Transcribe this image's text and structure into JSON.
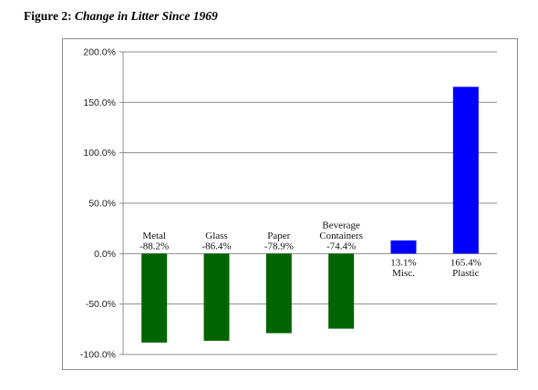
{
  "figure": {
    "title_prefix": "Figure 2:",
    "title_main": "Change in Litter Since 1969"
  },
  "chart_data": {
    "type": "bar",
    "categories": [
      "Metal",
      "Glass",
      "Paper",
      "Beverage Containers",
      "Misc.",
      "Plastic"
    ],
    "values": [
      -88.2,
      -86.4,
      -78.9,
      -74.4,
      13.1,
      165.4
    ],
    "value_labels": [
      "-88.2%",
      "-86.4%",
      "-78.9%",
      "-74.4%",
      "13.1%",
      "165.4%"
    ],
    "category_label_lines": [
      [
        "Metal"
      ],
      [
        "Glass"
      ],
      [
        "Paper"
      ],
      [
        "Beverage",
        "Containers"
      ],
      [
        "Misc."
      ],
      [
        "Plastic"
      ]
    ],
    "bar_colors": [
      "#006400",
      "#006400",
      "#006400",
      "#006400",
      "#0000ff",
      "#0000ff"
    ],
    "ylim": [
      -100,
      200
    ],
    "yticks": [
      200,
      150,
      100,
      50,
      0,
      -50,
      -100
    ],
    "ytick_labels": [
      "200.0%",
      "150.0%",
      "100.0%",
      "50.0%",
      "0.0%",
      "-50.0%",
      "-100.0%"
    ],
    "grid": true,
    "legend": "none",
    "title": "",
    "xlabel": "",
    "ylabel": ""
  }
}
